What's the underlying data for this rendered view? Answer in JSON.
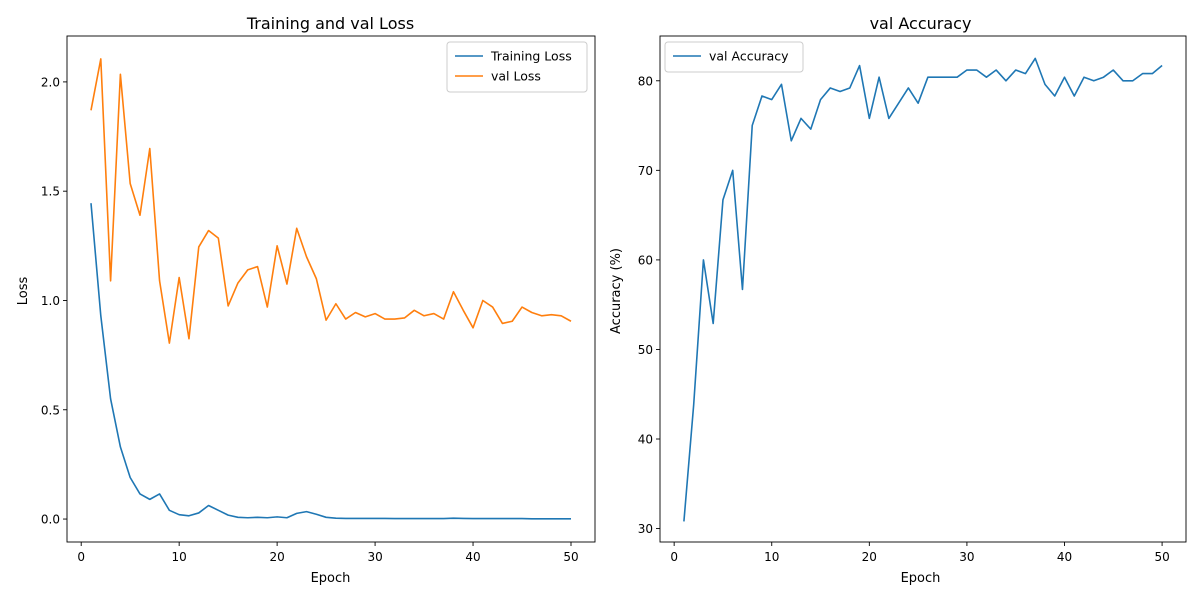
{
  "chart_data": [
    {
      "type": "line",
      "title": "Training and val Loss",
      "xlabel": "Epoch",
      "ylabel": "Loss",
      "xlim": [
        -1.45,
        52.45
      ],
      "ylim": [
        -0.105,
        2.21
      ],
      "xticks": [
        0,
        10,
        20,
        30,
        40,
        50
      ],
      "xtick_labels": [
        "0",
        "10",
        "20",
        "30",
        "40",
        "50"
      ],
      "yticks": [
        0.0,
        0.5,
        1.0,
        1.5,
        2.0
      ],
      "ytick_labels": [
        "0.0",
        "0.5",
        "1.0",
        "1.5",
        "2.0"
      ],
      "grid": false,
      "legend_loc": "upper right",
      "x": [
        1,
        2,
        3,
        4,
        5,
        6,
        7,
        8,
        9,
        10,
        11,
        12,
        13,
        14,
        15,
        16,
        17,
        18,
        19,
        20,
        21,
        22,
        23,
        24,
        25,
        26,
        27,
        28,
        29,
        30,
        31,
        32,
        33,
        34,
        35,
        36,
        37,
        38,
        39,
        40,
        41,
        42,
        43,
        44,
        45,
        46,
        47,
        48,
        49,
        50
      ],
      "series": [
        {
          "name": "Training Loss",
          "color": "#1f77b4",
          "values": [
            1.445,
            0.93,
            0.55,
            0.33,
            0.19,
            0.115,
            0.09,
            0.115,
            0.04,
            0.02,
            0.015,
            0.028,
            0.062,
            0.04,
            0.018,
            0.008,
            0.006,
            0.008,
            0.006,
            0.01,
            0.006,
            0.026,
            0.034,
            0.022,
            0.008,
            0.004,
            0.003,
            0.003,
            0.003,
            0.003,
            0.003,
            0.002,
            0.002,
            0.002,
            0.002,
            0.002,
            0.002,
            0.004,
            0.003,
            0.002,
            0.002,
            0.002,
            0.002,
            0.002,
            0.002,
            0.001,
            0.001,
            0.001,
            0.001,
            0.001
          ]
        },
        {
          "name": "val Loss",
          "color": "#ff7f0e",
          "values": [
            1.87,
            2.105,
            1.09,
            2.035,
            1.535,
            1.39,
            1.695,
            1.09,
            0.805,
            1.105,
            0.825,
            1.245,
            1.32,
            1.285,
            0.975,
            1.08,
            1.14,
            1.155,
            0.97,
            1.25,
            1.075,
            1.33,
            1.2,
            1.1,
            0.91,
            0.985,
            0.915,
            0.945,
            0.925,
            0.94,
            0.915,
            0.915,
            0.92,
            0.955,
            0.93,
            0.94,
            0.915,
            1.04,
            0.955,
            0.875,
            1.0,
            0.97,
            0.895,
            0.905,
            0.97,
            0.945,
            0.93,
            0.935,
            0.93,
            0.905
          ]
        }
      ]
    },
    {
      "type": "line",
      "title": "val Accuracy",
      "xlabel": "Epoch",
      "ylabel": "Accuracy (%)",
      "xlim": [
        -1.45,
        52.45
      ],
      "ylim": [
        28.5,
        85.0
      ],
      "xticks": [
        0,
        10,
        20,
        30,
        40,
        50
      ],
      "xtick_labels": [
        "0",
        "10",
        "20",
        "30",
        "40",
        "50"
      ],
      "yticks": [
        30,
        40,
        50,
        60,
        70,
        80
      ],
      "ytick_labels": [
        "30",
        "40",
        "50",
        "60",
        "70",
        "80"
      ],
      "grid": false,
      "legend_loc": "upper left",
      "x": [
        1,
        2,
        3,
        4,
        5,
        6,
        7,
        8,
        9,
        10,
        11,
        12,
        13,
        14,
        15,
        16,
        17,
        18,
        19,
        20,
        21,
        22,
        23,
        24,
        25,
        26,
        27,
        28,
        29,
        30,
        31,
        32,
        33,
        34,
        35,
        36,
        37,
        38,
        39,
        40,
        41,
        42,
        43,
        44,
        45,
        46,
        47,
        48,
        49,
        50
      ],
      "series": [
        {
          "name": "val Accuracy",
          "color": "#1f77b4",
          "values": [
            30.8,
            43.8,
            60.0,
            52.9,
            66.7,
            70.0,
            56.7,
            75.0,
            78.3,
            77.9,
            79.6,
            73.3,
            75.8,
            74.6,
            77.9,
            79.2,
            78.8,
            79.2,
            81.7,
            75.8,
            80.4,
            75.8,
            77.5,
            79.2,
            77.5,
            80.4,
            80.4,
            80.4,
            80.4,
            81.2,
            81.2,
            80.4,
            81.2,
            80.0,
            81.2,
            80.8,
            82.5,
            79.6,
            78.3,
            80.4,
            78.3,
            80.4,
            80.0,
            80.4,
            81.2,
            80.0,
            80.0,
            80.8,
            80.8,
            81.7
          ]
        }
      ]
    }
  ]
}
